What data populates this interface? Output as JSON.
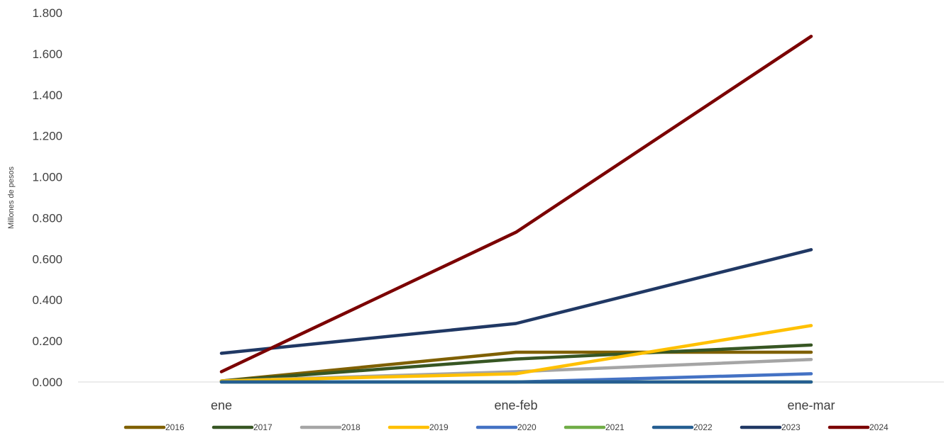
{
  "chart_data": {
    "type": "line",
    "title": "",
    "xlabel": "",
    "ylabel": "Millones de pesos",
    "categories": [
      "ene",
      "ene-feb",
      "ene-mar"
    ],
    "y_ticks": [
      "0.000",
      "0.200",
      "0.400",
      "0.600",
      "0.800",
      "1.000",
      "1.200",
      "1.400",
      "1.600",
      "1.800"
    ],
    "ylim": [
      0,
      1.8
    ],
    "grid": false,
    "legend_position": "bottom",
    "series": [
      {
        "name": "2016",
        "color": "#7F6000",
        "values": [
          0.005,
          0.145,
          0.145
        ]
      },
      {
        "name": "2017",
        "color": "#375623",
        "values": [
          0.005,
          0.112,
          0.18
        ]
      },
      {
        "name": "2018",
        "color": "#A5A5A5",
        "values": [
          0.005,
          0.05,
          0.11
        ]
      },
      {
        "name": "2019",
        "color": "#FFC000",
        "values": [
          0.005,
          0.04,
          0.275
        ]
      },
      {
        "name": "2020",
        "color": "#4472C4",
        "values": [
          0.0,
          0.0,
          0.04
        ]
      },
      {
        "name": "2021",
        "color": "#70AD47",
        "values": [
          0.0,
          0.0,
          0.0
        ]
      },
      {
        "name": "2022",
        "color": "#255E91",
        "values": [
          0.0,
          0.0,
          0.0
        ]
      },
      {
        "name": "2023",
        "color": "#203864",
        "values": [
          0.14,
          0.285,
          0.645
        ]
      },
      {
        "name": "2024",
        "color": "#7B0000",
        "values": [
          0.05,
          0.73,
          1.685
        ]
      }
    ]
  }
}
